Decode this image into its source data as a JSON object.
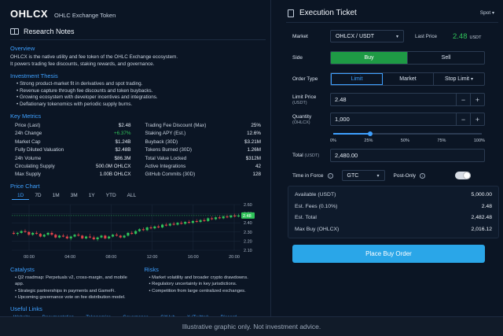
{
  "header": {
    "ticker": "OHLCX",
    "token_name": "OHLC Exchange Token"
  },
  "notes": {
    "title": "Research Notes",
    "overview_heading": "Overview",
    "overview_lines": [
      "OHLCX is the native utility and fee token of the OHLC Exchange ecosystem.",
      "It powers trading fee discounts, staking rewards, and governance."
    ],
    "thesis_heading": "Investment Thesis",
    "thesis": [
      "Strong product-market fit in derivatives and spot trading.",
      "Revenue capture through fee discounts and token buybacks.",
      "Growing ecosystem with developer incentives and integrations.",
      "Deflationary tokenomics with periodic supply burns."
    ],
    "metrics_heading": "Key Metrics",
    "metrics_left": [
      {
        "label": "Price (Last)",
        "value": "$2.48"
      },
      {
        "label": "24h Change",
        "value": "+6.37%"
      },
      {
        "label": "Market Cap",
        "value": "$1.24B"
      },
      {
        "label": "Fully Diluted Valuation",
        "value": "$2.48B"
      },
      {
        "label": "24h Volume",
        "value": "$86.3M"
      },
      {
        "label": "Circulating Supply",
        "value": "500.0M OHLCX"
      },
      {
        "label": "Max Supply",
        "value": "1.00B OHLCX"
      }
    ],
    "metrics_right": [
      {
        "label": "Trading Fee Discount (Max)",
        "value": "25%"
      },
      {
        "label": "Staking APY (Est.)",
        "value": "12.6%"
      },
      {
        "label": "Buyback (30D)",
        "value": "$3.21M"
      },
      {
        "label": "Tokens Burned (30D)",
        "value": "1.26M"
      },
      {
        "label": "Total Value Locked",
        "value": "$312M"
      },
      {
        "label": "Active Integrations",
        "value": "42"
      },
      {
        "label": "GitHub Commits (30D)",
        "value": "128"
      }
    ],
    "price_chart_heading": "Price Chart",
    "timeframes": [
      "1D",
      "7D",
      "1M",
      "3M",
      "1Y",
      "YTD",
      "ALL"
    ],
    "active_timeframe": "1D",
    "catalysts_heading": "Catalysts",
    "catalysts": [
      "Q2 roadmap: Perpetuals v2, cross-margin, and mobile app.",
      "Strategic partnerships in payments and GameFi.",
      "Upcoming governance vote on fee distribution model."
    ],
    "risks_heading": "Risks",
    "risks": [
      "Market volatility and broader crypto drawdowns.",
      "Regulatory uncertainty in key jurisdictions.",
      "Competition from large centralized exchanges."
    ],
    "links_heading": "Useful Links",
    "links": [
      "Website",
      "Documentation",
      "Tokenomics",
      "Governance",
      "GitHub",
      "X (Twitter)",
      "Discord"
    ]
  },
  "chart_data": {
    "type": "candlestick",
    "x_ticks": [
      "00:00",
      "04:00",
      "08:00",
      "12:00",
      "16:00",
      "20:00"
    ],
    "y_ticks": [
      "2.60",
      "2.50",
      "2.40",
      "2.30",
      "2.20",
      "2.10"
    ],
    "ylim": [
      2.1,
      2.6
    ],
    "last_price_tag": "2.48",
    "candles": [
      [
        2.29,
        2.31,
        2.27,
        2.28
      ],
      [
        2.28,
        2.3,
        2.26,
        2.29
      ],
      [
        2.29,
        2.32,
        2.28,
        2.31
      ],
      [
        2.31,
        2.33,
        2.29,
        2.3
      ],
      [
        2.3,
        2.31,
        2.26,
        2.27
      ],
      [
        2.27,
        2.3,
        2.26,
        2.29
      ],
      [
        2.29,
        2.31,
        2.27,
        2.28
      ],
      [
        2.28,
        2.29,
        2.24,
        2.25
      ],
      [
        2.25,
        2.28,
        2.24,
        2.27
      ],
      [
        2.27,
        2.3,
        2.26,
        2.29
      ],
      [
        2.29,
        2.31,
        2.26,
        2.27
      ],
      [
        2.27,
        2.28,
        2.23,
        2.24
      ],
      [
        2.24,
        2.27,
        2.23,
        2.26
      ],
      [
        2.26,
        2.28,
        2.24,
        2.25
      ],
      [
        2.25,
        2.27,
        2.22,
        2.23
      ],
      [
        2.23,
        2.26,
        2.21,
        2.25
      ],
      [
        2.25,
        2.28,
        2.24,
        2.27
      ],
      [
        2.27,
        2.29,
        2.25,
        2.26
      ],
      [
        2.26,
        2.27,
        2.22,
        2.23
      ],
      [
        2.23,
        2.26,
        2.22,
        2.25
      ],
      [
        2.25,
        2.28,
        2.23,
        2.24
      ],
      [
        2.24,
        2.26,
        2.21,
        2.22
      ],
      [
        2.22,
        2.25,
        2.2,
        2.24
      ],
      [
        2.24,
        2.27,
        2.23,
        2.26
      ],
      [
        2.26,
        2.27,
        2.22,
        2.23
      ],
      [
        2.23,
        2.26,
        2.22,
        2.25
      ],
      [
        2.25,
        2.28,
        2.24,
        2.27
      ],
      [
        2.27,
        2.29,
        2.25,
        2.26
      ],
      [
        2.26,
        2.27,
        2.23,
        2.24
      ],
      [
        2.24,
        2.27,
        2.23,
        2.26
      ],
      [
        2.26,
        2.3,
        2.25,
        2.29
      ],
      [
        2.29,
        2.31,
        2.27,
        2.28
      ],
      [
        2.28,
        2.32,
        2.27,
        2.31
      ],
      [
        2.31,
        2.34,
        2.3,
        2.33
      ],
      [
        2.33,
        2.35,
        2.31,
        2.32
      ],
      [
        2.32,
        2.36,
        2.31,
        2.35
      ],
      [
        2.35,
        2.37,
        2.33,
        2.34
      ],
      [
        2.34,
        2.37,
        2.33,
        2.36
      ],
      [
        2.36,
        2.38,
        2.34,
        2.35
      ],
      [
        2.35,
        2.39,
        2.34,
        2.38
      ],
      [
        2.38,
        2.4,
        2.36,
        2.37
      ],
      [
        2.37,
        2.4,
        2.36,
        2.39
      ],
      [
        2.39,
        2.41,
        2.37,
        2.38
      ],
      [
        2.38,
        2.41,
        2.37,
        2.4
      ],
      [
        2.4,
        2.42,
        2.38,
        2.39
      ],
      [
        2.39,
        2.42,
        2.38,
        2.41
      ],
      [
        2.41,
        2.43,
        2.39,
        2.4
      ],
      [
        2.4,
        2.43,
        2.39,
        2.42
      ],
      [
        2.42,
        2.44,
        2.4,
        2.41
      ],
      [
        2.41,
        2.44,
        2.4,
        2.43
      ],
      [
        2.43,
        2.45,
        2.41,
        2.42
      ],
      [
        2.42,
        2.46,
        2.41,
        2.45
      ],
      [
        2.45,
        2.47,
        2.43,
        2.44
      ],
      [
        2.44,
        2.47,
        2.43,
        2.46
      ],
      [
        2.46,
        2.48,
        2.44,
        2.45
      ],
      [
        2.45,
        2.48,
        2.44,
        2.47
      ],
      [
        2.47,
        2.49,
        2.45,
        2.46
      ],
      [
        2.46,
        2.49,
        2.45,
        2.48
      ],
      [
        2.48,
        2.5,
        2.46,
        2.47
      ],
      [
        2.47,
        2.5,
        2.46,
        2.48
      ]
    ]
  },
  "ticket": {
    "title": "Execution Ticket",
    "mode": "Spot",
    "market_label": "Market",
    "market_value": "OHLCX / USDT",
    "last_price_label": "Last Price",
    "last_price": "2.48",
    "last_price_unit": "USDT",
    "side_label": "Side",
    "buy_label": "Buy",
    "sell_label": "Sell",
    "order_type_label": "Order Type",
    "order_types": [
      "Limit",
      "Market",
      "Stop Limit"
    ],
    "limit_price_label": "Limit Price",
    "limit_price_unit": "(USDT)",
    "limit_price": "2.48",
    "quantity_label": "Quantity",
    "quantity_unit": "(OHLCX)",
    "quantity": "1,000",
    "slider_pct": 0.25,
    "slider_ticks": [
      "0%",
      "25%",
      "50%",
      "75%",
      "100%"
    ],
    "total_label": "Total",
    "total_unit": "(USDT)",
    "total": "2,480.00",
    "tif_label": "Time in Force",
    "tif_value": "GTC",
    "post_only_label": "Post-Only",
    "summary": [
      {
        "label": "Available (USDT)",
        "value": "5,000.00"
      },
      {
        "label": "Est. Fees (0.10%)",
        "value": "2.48"
      },
      {
        "label": "Est. Total",
        "value": "2,482.48"
      },
      {
        "label": "Max Buy (OHLCX)",
        "value": "2,016.12"
      }
    ],
    "place_label": "Place Buy Order"
  },
  "footer": {
    "disclaimer": "Illustrative graphic only. Not investment advice."
  },
  "colors": {
    "accent": "#3ea0ff",
    "up": "#30c35a",
    "down": "#e0444b",
    "buy": "#1e9a45",
    "cta": "#2aa6e8"
  }
}
